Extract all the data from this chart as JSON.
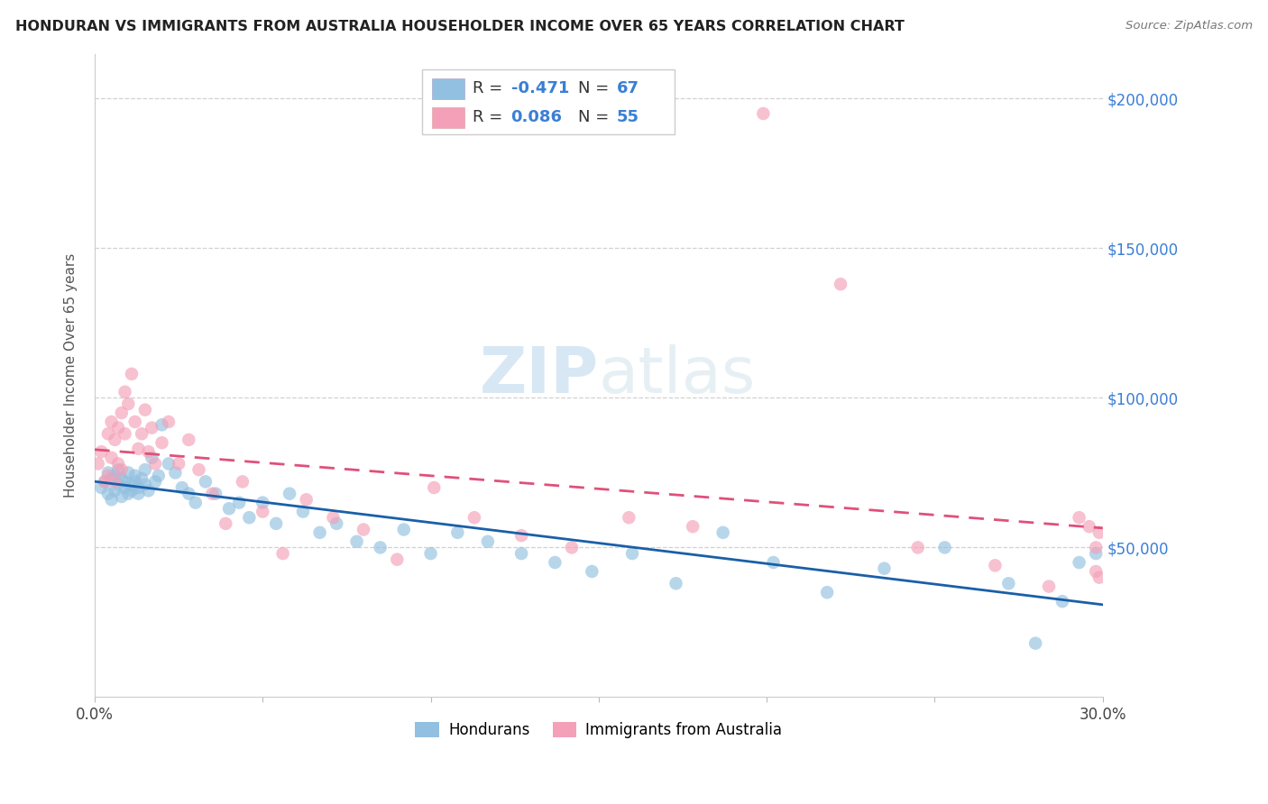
{
  "title": "HONDURAN VS IMMIGRANTS FROM AUSTRALIA HOUSEHOLDER INCOME OVER 65 YEARS CORRELATION CHART",
  "source": "Source: ZipAtlas.com",
  "ylabel": "Householder Income Over 65 years",
  "yticks": [
    0,
    50000,
    100000,
    150000,
    200000
  ],
  "xlim": [
    0.0,
    0.3
  ],
  "ylim": [
    0,
    215000
  ],
  "blue_color": "#92c0e0",
  "pink_color": "#f4a0b8",
  "blue_line_color": "#1a5fa8",
  "pink_line_color": "#e0507a",
  "right_tick_color": "#3a7fd5",
  "watermark_color": "#c8dff0",
  "legend_labels": [
    "Hondurans",
    "Immigrants from Australia"
  ],
  "R_blue": "-0.471",
  "N_blue": "67",
  "R_pink": "0.086",
  "N_pink": "55",
  "hondurans_x": [
    0.002,
    0.003,
    0.004,
    0.004,
    0.005,
    0.005,
    0.006,
    0.006,
    0.007,
    0.007,
    0.008,
    0.008,
    0.009,
    0.009,
    0.01,
    0.01,
    0.011,
    0.011,
    0.012,
    0.012,
    0.013,
    0.013,
    0.014,
    0.015,
    0.015,
    0.016,
    0.017,
    0.018,
    0.019,
    0.02,
    0.022,
    0.024,
    0.026,
    0.028,
    0.03,
    0.033,
    0.036,
    0.04,
    0.043,
    0.046,
    0.05,
    0.054,
    0.058,
    0.062,
    0.067,
    0.072,
    0.078,
    0.085,
    0.092,
    0.1,
    0.108,
    0.117,
    0.127,
    0.137,
    0.148,
    0.16,
    0.173,
    0.187,
    0.202,
    0.218,
    0.235,
    0.253,
    0.272,
    0.28,
    0.288,
    0.293,
    0.298
  ],
  "hondurans_y": [
    70000,
    72000,
    68000,
    75000,
    66000,
    73000,
    69000,
    74000,
    71000,
    76000,
    67000,
    73000,
    70000,
    72000,
    68000,
    75000,
    71000,
    69000,
    74000,
    72000,
    70000,
    68000,
    73000,
    71000,
    76000,
    69000,
    80000,
    72000,
    74000,
    91000,
    78000,
    75000,
    70000,
    68000,
    65000,
    72000,
    68000,
    63000,
    65000,
    60000,
    65000,
    58000,
    68000,
    62000,
    55000,
    58000,
    52000,
    50000,
    56000,
    48000,
    55000,
    52000,
    48000,
    45000,
    42000,
    48000,
    38000,
    55000,
    45000,
    35000,
    43000,
    50000,
    38000,
    18000,
    32000,
    45000,
    48000
  ],
  "australia_x": [
    0.001,
    0.002,
    0.003,
    0.004,
    0.004,
    0.005,
    0.005,
    0.006,
    0.006,
    0.007,
    0.007,
    0.008,
    0.008,
    0.009,
    0.009,
    0.01,
    0.011,
    0.012,
    0.013,
    0.014,
    0.015,
    0.016,
    0.017,
    0.018,
    0.02,
    0.022,
    0.025,
    0.028,
    0.031,
    0.035,
    0.039,
    0.044,
    0.05,
    0.056,
    0.063,
    0.071,
    0.08,
    0.09,
    0.101,
    0.113,
    0.127,
    0.142,
    0.159,
    0.178,
    0.199,
    0.222,
    0.245,
    0.268,
    0.284,
    0.293,
    0.296,
    0.298,
    0.298,
    0.299,
    0.299
  ],
  "australia_y": [
    78000,
    82000,
    72000,
    88000,
    74000,
    92000,
    80000,
    86000,
    72000,
    78000,
    90000,
    76000,
    95000,
    88000,
    102000,
    98000,
    108000,
    92000,
    83000,
    88000,
    96000,
    82000,
    90000,
    78000,
    85000,
    92000,
    78000,
    86000,
    76000,
    68000,
    58000,
    72000,
    62000,
    48000,
    66000,
    60000,
    56000,
    46000,
    70000,
    60000,
    54000,
    50000,
    60000,
    57000,
    195000,
    138000,
    50000,
    44000,
    37000,
    60000,
    57000,
    50000,
    42000,
    55000,
    40000
  ]
}
